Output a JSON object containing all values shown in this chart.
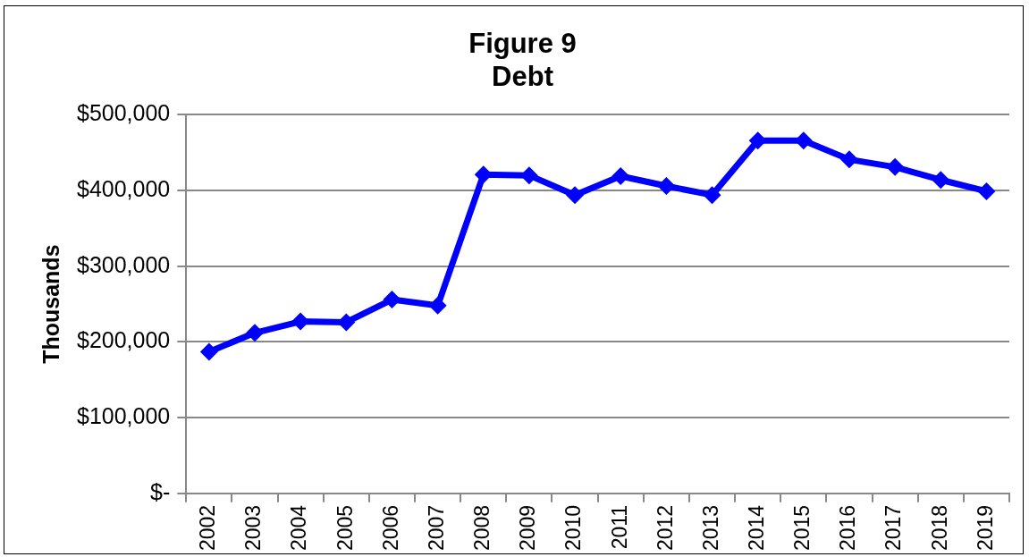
{
  "chart_data": {
    "type": "line",
    "title": "Figure 9\nDebt",
    "ylabel": "Thousands",
    "categories": [
      "2002",
      "2003",
      "2004",
      "2005",
      "2006",
      "2007",
      "2008",
      "2009",
      "2010",
      "2011",
      "2012",
      "2013",
      "2014",
      "2015",
      "2016",
      "2017",
      "2018",
      "2019"
    ],
    "series": [
      {
        "color": "#0000ff",
        "values": [
          187000,
          212000,
          227000,
          226000,
          256000,
          248000,
          421000,
          420000,
          394000,
          419000,
          406000,
          394000,
          466000,
          466000,
          441000,
          431000,
          414000,
          399000
        ]
      }
    ],
    "ylim": [
      0,
      500000
    ],
    "yticks": [
      {
        "value": 0,
        "label": "$-"
      },
      {
        "value": 100000,
        "label": "$100,000"
      },
      {
        "value": 200000,
        "label": "$200,000"
      },
      {
        "value": 300000,
        "label": "$300,000"
      },
      {
        "value": 400000,
        "label": "$400,000"
      },
      {
        "value": 500000,
        "label": "$500,000"
      }
    ],
    "grid": "y",
    "legend": false,
    "marker": "diamond",
    "line_style": "solid"
  }
}
